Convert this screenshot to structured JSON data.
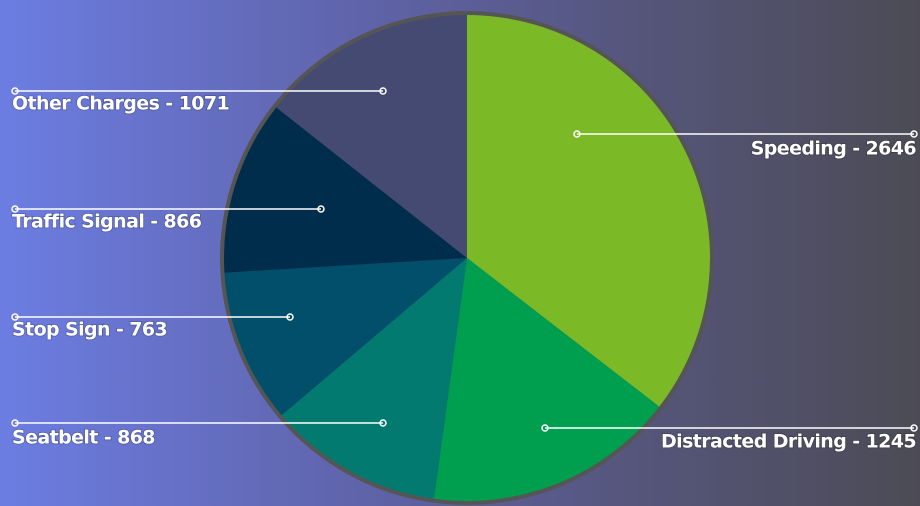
{
  "chart_data": {
    "type": "pie",
    "values": [
      2646,
      1245,
      868,
      763,
      866,
      1071
    ],
    "value_labels": [
      "Speeding - 2646",
      "Distracted Driving - 1245",
      "Seatbelt - 868",
      "Stop Sign - 763",
      "Traffic Signal - 866",
      "Other Charges - 1071"
    ],
    "colors": [
      "#7cb927",
      "#009e4f",
      "#027a70",
      "#024f6c",
      "#002d4c",
      "#454a72"
    ]
  }
}
